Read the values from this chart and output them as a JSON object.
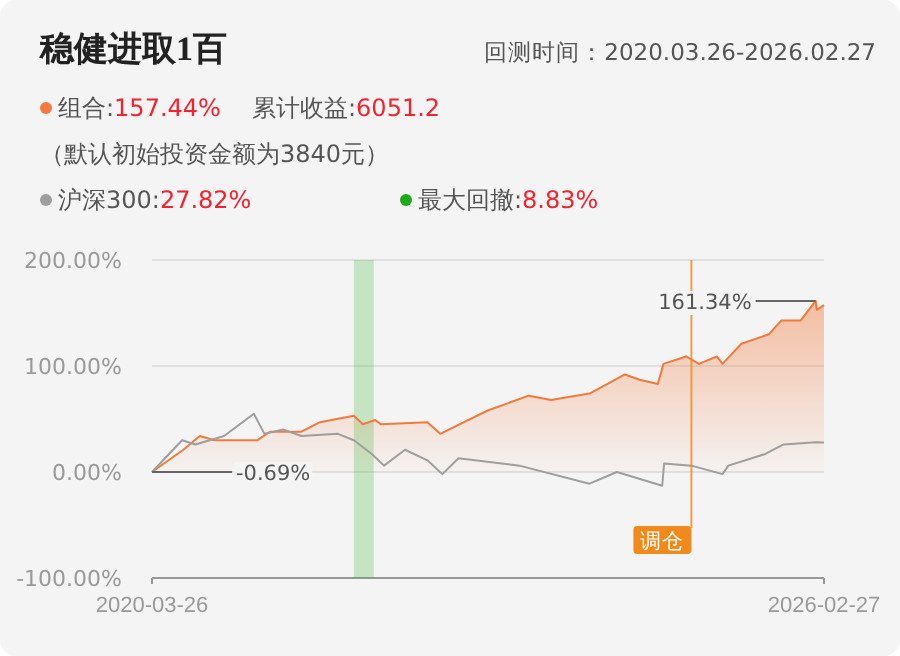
{
  "chart_data": {
    "type": "line",
    "title": "稳健进取1百",
    "subtitle": "回测时间：2020.03.26-2026.02.27",
    "legend": "top left",
    "grid": "y",
    "xlim": [
      "2020-03-26",
      "2026-02-27"
    ],
    "xticks": [
      "2020-03-26",
      "2026-02-27"
    ],
    "ylim": [
      -100,
      200
    ],
    "yticks": [
      {
        "value": -100,
        "label": "-100.00%"
      },
      {
        "value": 0,
        "label": "0.00%"
      },
      {
        "value": 100,
        "label": "100.00%"
      },
      {
        "value": 200,
        "label": "200.00%"
      }
    ],
    "series": [
      {
        "name": "组合:157.44%",
        "type": "area",
        "color": "#f47a3c",
        "x": [
          "2020-03-26",
          "2020-07-05",
          "2020-08-27",
          "2020-10-13",
          "2021-03-01",
          "2021-04-10",
          "2021-07-20",
          "2021-09-18",
          "2022-01-05",
          "2022-02-03",
          "2022-03-15",
          "2022-04-02",
          "2022-08-30",
          "2022-10-10",
          "2023-03-12",
          "2023-07-22",
          "2023-10-02",
          "2024-02-03",
          "2024-05-27",
          "2024-07-13",
          "2024-09-10",
          "2024-09-28",
          "2024-12-10",
          "2025-01-20",
          "2025-03-19",
          "2025-04-06",
          "2025-06-06",
          "2025-09-03",
          "2025-10-13",
          "2025-12-14",
          "2026-01-31",
          "2026-02-04",
          "2026-02-27"
        ],
        "values": [
          0,
          21,
          34,
          30,
          30,
          38,
          38,
          47,
          53,
          45,
          49,
          45,
          47,
          36,
          58,
          72,
          68,
          74,
          92,
          87,
          83,
          102,
          109,
          102,
          109,
          102,
          121,
          130,
          143,
          143,
          161.34,
          153,
          157.44
        ]
      },
      {
        "name": "沪深300:27.82%",
        "type": "line",
        "color": "#9e9e9e",
        "x": [
          "2020-03-26",
          "2020-07-01",
          "2020-08-13",
          "2020-11-13",
          "2021-02-17",
          "2021-03-23",
          "2021-05-23",
          "2021-07-20",
          "2021-11-15",
          "2022-01-05",
          "2022-03-04",
          "2022-04-12",
          "2022-06-19",
          "2022-08-30",
          "2022-10-17",
          "2022-12-08",
          "2023-06-22",
          "2024-02-03",
          "2024-05-01",
          "2024-09-24",
          "2024-09-30",
          "2024-12-27",
          "2025-04-06",
          "2025-04-25",
          "2025-08-22",
          "2025-10-20",
          "2026-01-31",
          "2026-02-27"
        ],
        "values": [
          0,
          30,
          26,
          34,
          55,
          36,
          40,
          34,
          36,
          30,
          17,
          6,
          21,
          11,
          -2,
          13,
          6,
          -11,
          0,
          -13,
          8,
          6,
          -2,
          6,
          17,
          26,
          28,
          27.82
        ]
      }
    ],
    "bands": [
      {
        "axis": "x",
        "from": "2022-01-05",
        "to": "2022-03-10",
        "label": "最大回撤:8.83%",
        "color": "#1aad19"
      }
    ],
    "ref_lines": [
      {
        "axis": "x",
        "value": "2024-12-27",
        "label": "调仓",
        "color": "#f08a1c"
      }
    ],
    "annotations": [
      "累计收益:6051.2",
      "（默认初始投资金额为3840元）",
      "-0.69%",
      "161.34%"
    ]
  }
}
